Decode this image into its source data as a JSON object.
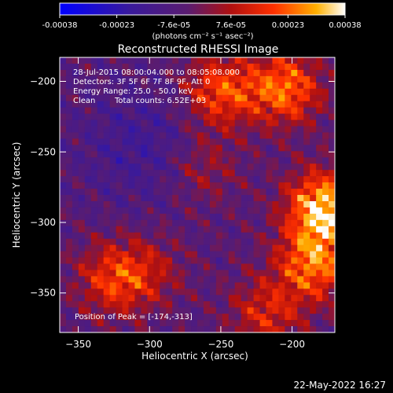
{
  "colorbar": {
    "ticks": [
      "-0.00038",
      "-0.00023",
      "-7.6e-05",
      "7.6e-05",
      "0.00023",
      "0.00038"
    ],
    "unit_label": "(photons cm⁻² s⁻¹ asec⁻²)",
    "range": [
      -0.00038,
      0.00038
    ],
    "colormap": "blue-purple-red-yellow-white"
  },
  "chart_data": {
    "type": "heatmap",
    "title": "Reconstructed RHESSI Image",
    "xlabel": "Heliocentric X (arcsec)",
    "ylabel": "Heliocentric Y (arcsec)",
    "xlim": [
      -363,
      -170
    ],
    "ylim": [
      -378,
      -183
    ],
    "x_ticks": [
      -350,
      -300,
      -250,
      -200
    ],
    "y_ticks": [
      -200,
      -250,
      -300,
      -350
    ],
    "x_tick_labels": [
      "−350",
      "−300",
      "−250",
      "−200"
    ],
    "y_tick_labels": [
      "−200",
      "−250",
      "−300",
      "−350"
    ],
    "grid": false,
    "annotations": {
      "time_range": "28-Jul-2015 08:00:04.000 to 08:05:08.000",
      "detectors": "Detectors: 3F 5F 6F 7F 8F 9F, Att 0",
      "energy_range": "Energy Range: 25.0 - 50.0 keV",
      "method": "Clean",
      "total_counts": "Total counts: 6.52E+03",
      "peak_position": "Position of Peak = [-174,-313]"
    },
    "peak": [
      -174,
      -313
    ],
    "bright_regions": [
      {
        "x": -250,
        "y": -207,
        "level": 0.75
      },
      {
        "x": -205,
        "y": -205,
        "level": 0.8
      },
      {
        "x": -178,
        "y": -290,
        "level": 0.95
      },
      {
        "x": -185,
        "y": -330,
        "level": 0.8
      },
      {
        "x": -325,
        "y": -340,
        "level": 0.7
      },
      {
        "x": -262,
        "y": -262,
        "level": 0.55
      },
      {
        "x": -300,
        "y": -335,
        "level": 0.55
      },
      {
        "x": -218,
        "y": -365,
        "level": 0.65
      }
    ]
  },
  "footer": {
    "timestamp": "22-May-2022 16:27"
  }
}
